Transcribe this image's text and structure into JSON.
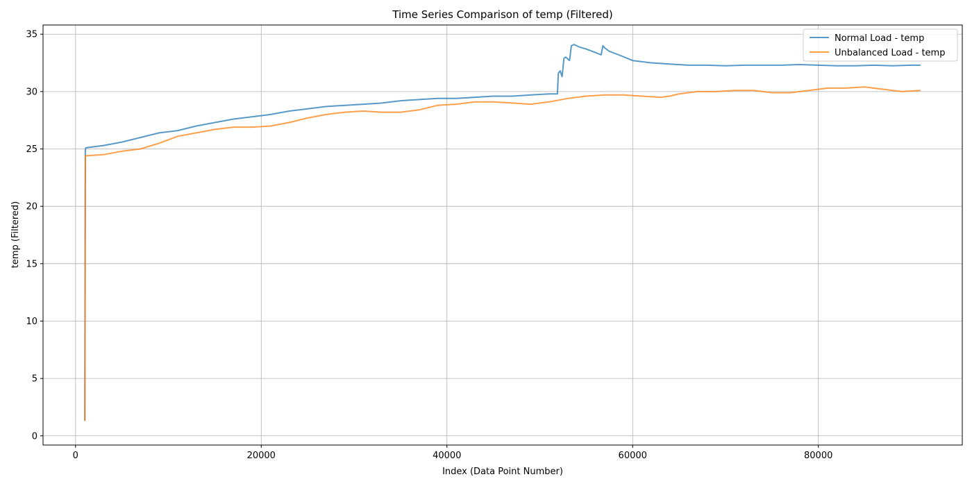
{
  "chart_data": {
    "type": "line",
    "title": "Time Series Comparison of temp (Filtered)",
    "xlabel": "Index (Data Point Number)",
    "ylabel": "temp (Filtered)",
    "xlim": [
      -3500,
      95500
    ],
    "ylim": [
      -0.8,
      35.8
    ],
    "xticks": [
      0,
      20000,
      40000,
      60000,
      80000
    ],
    "yticks": [
      0,
      5,
      10,
      15,
      20,
      25,
      30,
      35
    ],
    "grid": true,
    "legend_position": "top-right",
    "series": [
      {
        "name": "Normal Load - temp",
        "color": "#1f77b4",
        "x": [
          1000,
          1050,
          1100,
          3000,
          5000,
          7000,
          9000,
          11000,
          13000,
          15000,
          17000,
          19000,
          21000,
          23000,
          25000,
          27000,
          29000,
          31000,
          33000,
          35000,
          37000,
          39000,
          41000,
          43000,
          45000,
          47000,
          49000,
          51000,
          51900,
          52000,
          52200,
          52400,
          52600,
          52800,
          53200,
          53400,
          53700,
          54200,
          55000,
          56000,
          56600,
          56800,
          57000,
          57500,
          58500,
          60000,
          62000,
          64000,
          66000,
          68000,
          70000,
          72000,
          74000,
          76000,
          78000,
          80000,
          82000,
          84000,
          86000,
          88000,
          90000,
          91000
        ],
        "y": [
          1.3,
          24.9,
          25.1,
          25.3,
          25.6,
          26.0,
          26.4,
          26.6,
          27.0,
          27.3,
          27.6,
          27.8,
          28.0,
          28.3,
          28.5,
          28.7,
          28.8,
          28.9,
          29.0,
          29.2,
          29.3,
          29.4,
          29.4,
          29.5,
          29.6,
          29.6,
          29.7,
          29.8,
          29.8,
          31.6,
          31.8,
          31.3,
          32.9,
          33.0,
          32.7,
          34.0,
          34.1,
          33.9,
          33.7,
          33.4,
          33.2,
          34.0,
          33.8,
          33.5,
          33.2,
          32.7,
          32.5,
          32.4,
          32.3,
          32.3,
          32.25,
          32.3,
          32.3,
          32.3,
          32.35,
          32.3,
          32.25,
          32.25,
          32.3,
          32.25,
          32.3,
          32.3
        ]
      },
      {
        "name": "Unbalanced Load - temp",
        "color": "#ff7f0e",
        "x": [
          1000,
          1050,
          1100,
          3000,
          5000,
          7000,
          9000,
          11000,
          13000,
          15000,
          17000,
          19000,
          21000,
          23000,
          25000,
          27000,
          29000,
          31000,
          33000,
          35000,
          37000,
          39000,
          41000,
          43000,
          45000,
          47000,
          49000,
          51000,
          53000,
          55000,
          57000,
          59000,
          61000,
          63000,
          64000,
          65000,
          67000,
          69000,
          71000,
          73000,
          75000,
          77000,
          79000,
          81000,
          83000,
          85000,
          87000,
          89000,
          91000
        ],
        "y": [
          1.3,
          24.4,
          24.4,
          24.5,
          24.8,
          25.0,
          25.5,
          26.1,
          26.4,
          26.7,
          26.9,
          26.9,
          27.0,
          27.3,
          27.7,
          28.0,
          28.2,
          28.3,
          28.2,
          28.2,
          28.4,
          28.8,
          28.9,
          29.1,
          29.1,
          29.0,
          28.9,
          29.1,
          29.4,
          29.6,
          29.7,
          29.7,
          29.6,
          29.5,
          29.6,
          29.8,
          30.0,
          30.0,
          30.1,
          30.1,
          29.9,
          29.9,
          30.1,
          30.3,
          30.3,
          30.4,
          30.2,
          30.0,
          30.1
        ]
      }
    ]
  }
}
